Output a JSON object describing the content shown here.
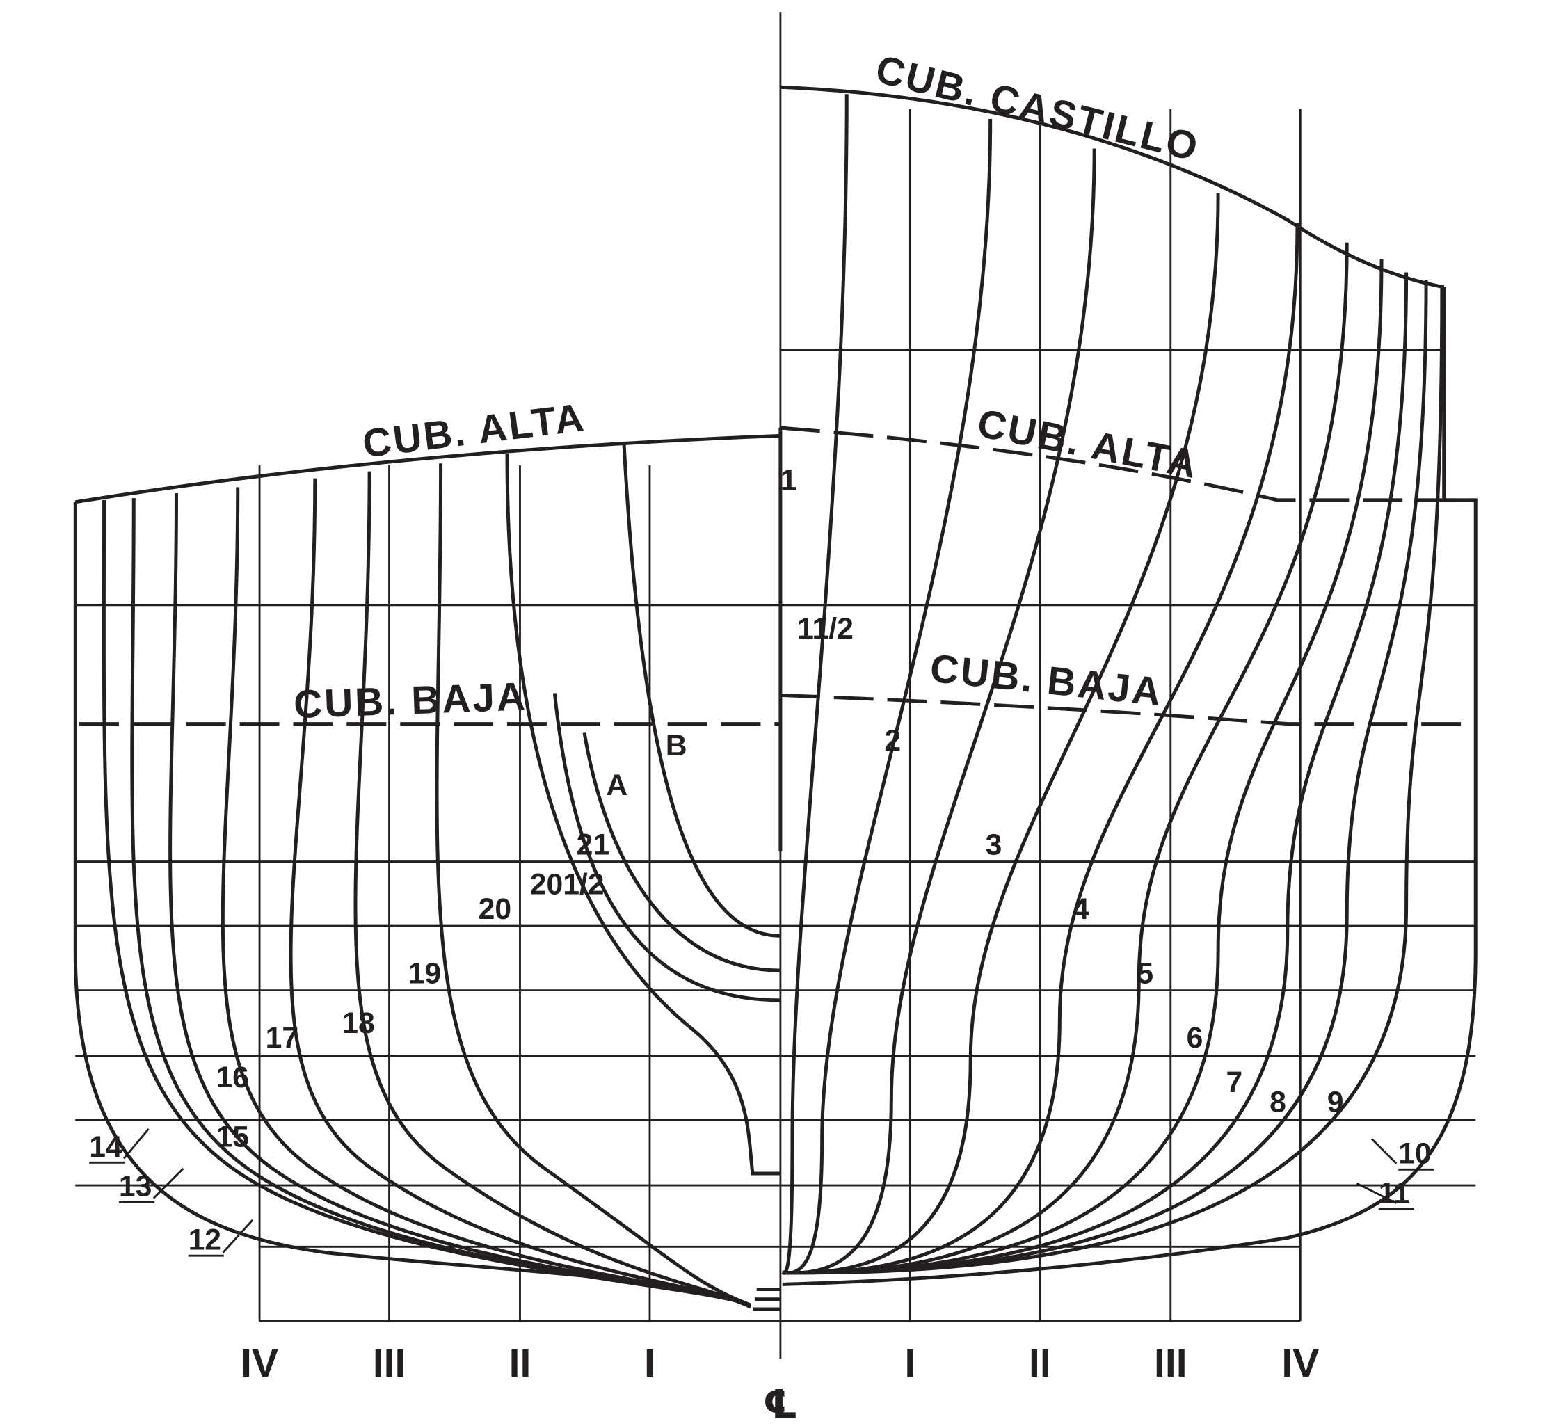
{
  "deck_labels": {
    "castillo": "CUB. CASTILLO",
    "alta_left": "CUB. ALTA",
    "alta_right": "CUB. ALTA",
    "baja_left": "CUB. BAJA",
    "baja_right": "CUB. BAJA"
  },
  "station_labels": [
    "1",
    "11/2",
    "2",
    "3",
    "4",
    "5",
    "6",
    "7",
    "8",
    "9",
    "10",
    "11",
    "12",
    "13",
    "14",
    "15",
    "16",
    "17",
    "18",
    "19",
    "20",
    "201/2",
    "21",
    "A",
    "B"
  ],
  "buttock_labels": [
    "IV",
    "III",
    "II",
    "I",
    "I",
    "II",
    "III",
    "IV"
  ],
  "centerline_label": "℄"
}
